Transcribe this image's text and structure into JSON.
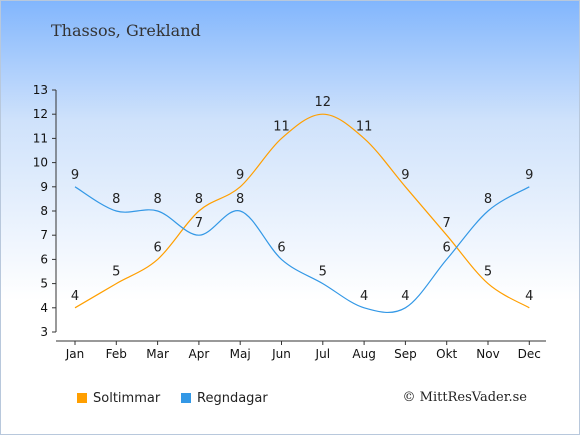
{
  "title": "Thassos, Grekland",
  "credit": "© MittResVader.se",
  "chart_data": {
    "type": "line",
    "title": "Thassos, Grekland",
    "categories": [
      "Jan",
      "Feb",
      "Mar",
      "Apr",
      "Maj",
      "Jun",
      "Jul",
      "Aug",
      "Sep",
      "Okt",
      "Nov",
      "Dec"
    ],
    "ylim": [
      3,
      13
    ],
    "yticks": [
      3,
      4,
      5,
      6,
      7,
      8,
      9,
      10,
      11,
      12,
      13
    ],
    "grid": false,
    "legend_position": "bottom-left",
    "series": [
      {
        "name": "Soltimmar",
        "color": "#ff9f00",
        "values": [
          4,
          5,
          6,
          8,
          9,
          11,
          12,
          11,
          9,
          7,
          5,
          4
        ]
      },
      {
        "name": "Regndagar",
        "color": "#3398e6",
        "values": [
          9,
          8,
          8,
          7,
          8,
          6,
          5,
          4,
          4,
          6,
          8,
          9
        ]
      }
    ]
  }
}
